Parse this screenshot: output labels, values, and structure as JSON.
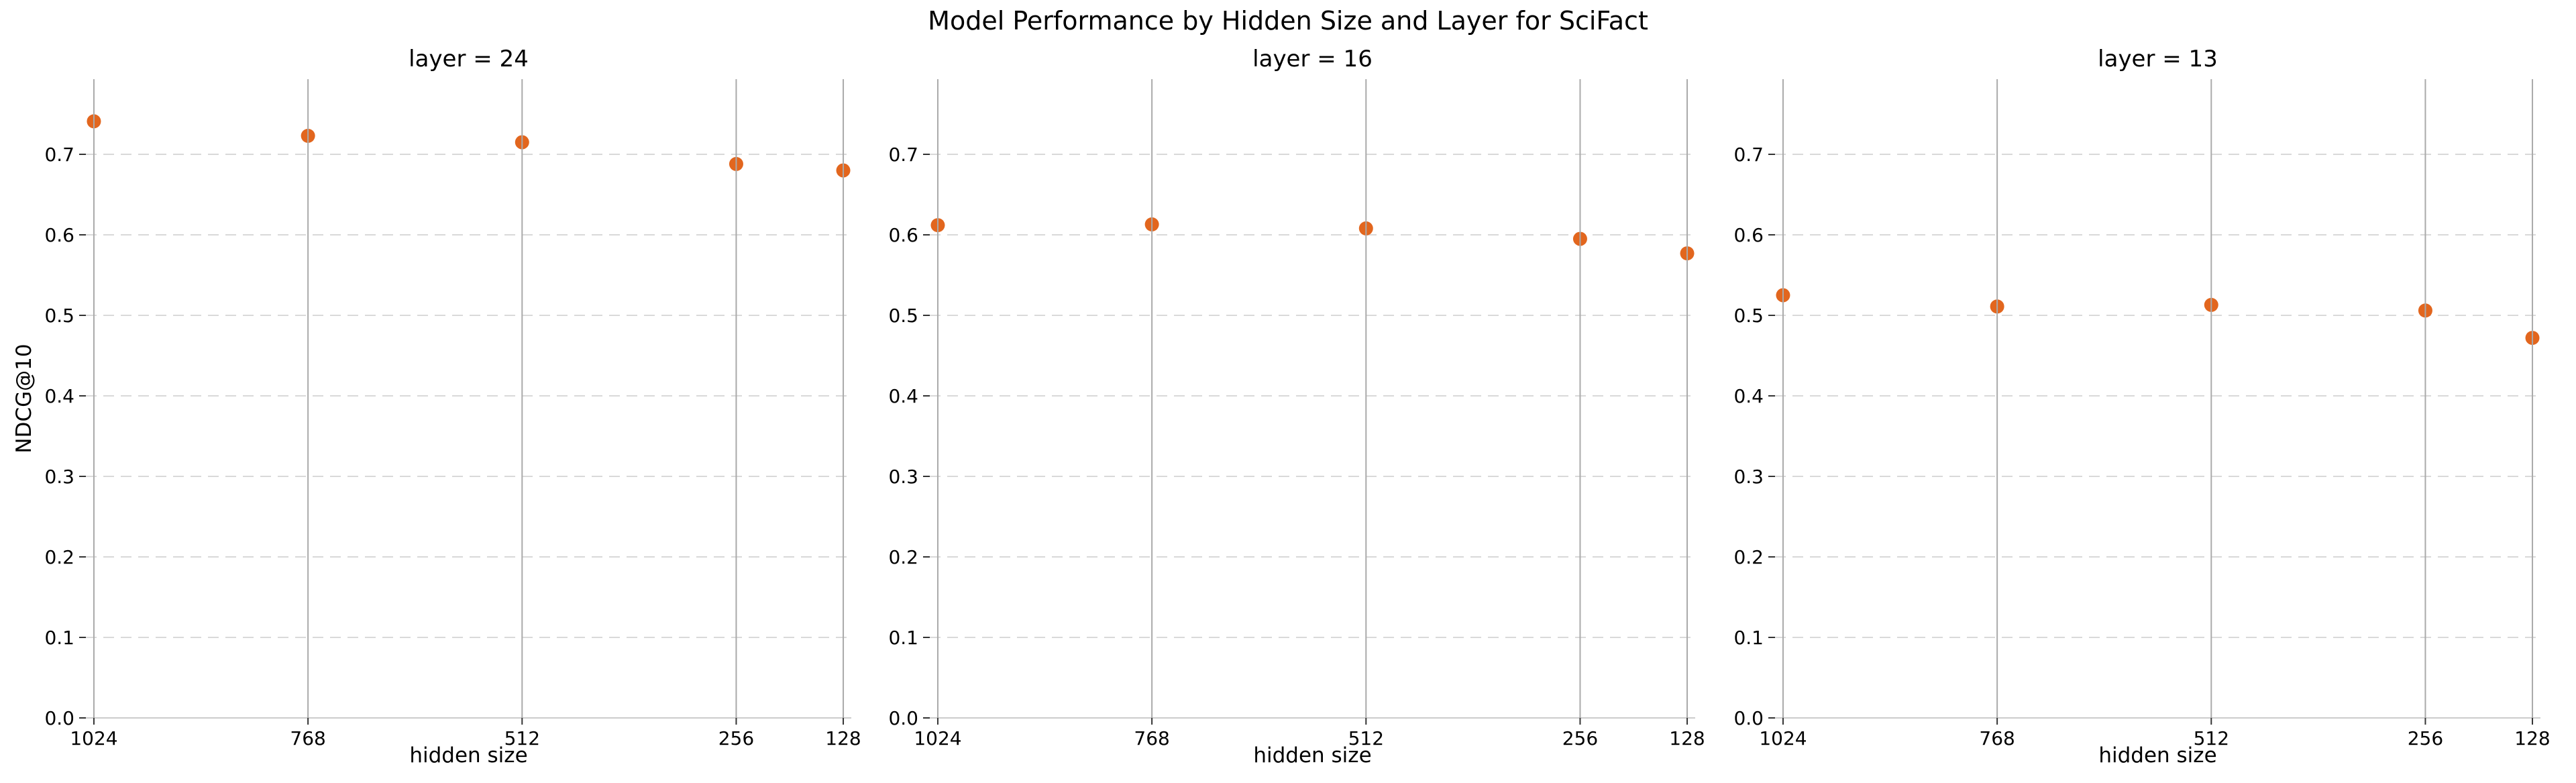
{
  "chart_data": {
    "type": "scatter",
    "title": "Model Performance by Hidden Size and Layer for SciFact",
    "xlabel": "hidden size",
    "ylabel": "NDCG@10",
    "x_ticks": [
      1024,
      768,
      512,
      256,
      128
    ],
    "x_tick_labels": [
      "1024",
      "768",
      "512",
      "256",
      "128"
    ],
    "y_ticks": [
      0.0,
      0.1,
      0.2,
      0.3,
      0.4,
      0.5,
      0.6,
      0.7
    ],
    "y_tick_labels": [
      "0.0",
      "0.1",
      "0.2",
      "0.3",
      "0.4",
      "0.5",
      "0.6",
      "0.7"
    ],
    "x_axis_inverted": true,
    "xlim": [
      1033.6,
      118.4
    ],
    "ylim": [
      0.0,
      0.793
    ],
    "grid": {
      "vertical": "solid",
      "horizontal": "dashed"
    },
    "legend_position": "none",
    "facets": [
      {
        "label": "layer = 24",
        "x": [
          1024,
          768,
          512,
          256,
          128
        ],
        "y": [
          0.741,
          0.723,
          0.715,
          0.688,
          0.68
        ]
      },
      {
        "label": "layer = 16",
        "x": [
          1024,
          768,
          512,
          256,
          128
        ],
        "y": [
          0.612,
          0.613,
          0.608,
          0.595,
          0.577
        ]
      },
      {
        "label": "layer = 13",
        "x": [
          1024,
          768,
          512,
          256,
          128
        ],
        "y": [
          0.525,
          0.511,
          0.513,
          0.506,
          0.472
        ]
      }
    ],
    "colors": {
      "marker": "#e2661e",
      "grid_vertical": "#aaaaaa",
      "grid_horizontal": "#d9d9d9",
      "axis_spine": "#cccccc",
      "tick": "#333333",
      "text": "#000000",
      "background": "#ffffff"
    }
  }
}
